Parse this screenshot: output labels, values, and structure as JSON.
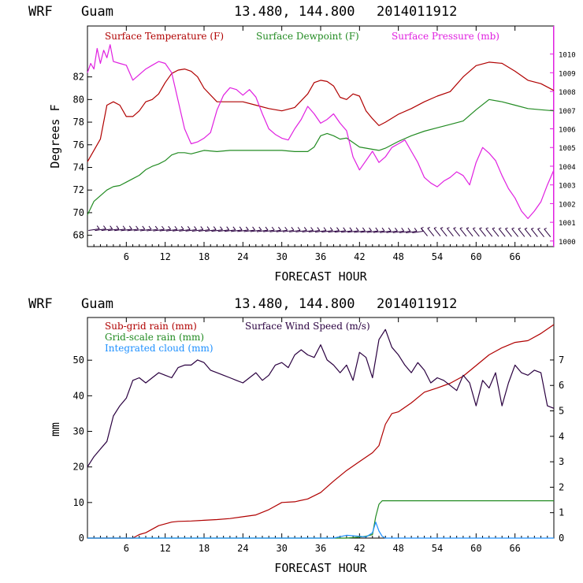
{
  "header": {
    "model": "WRF",
    "location": "Guam",
    "coords": "13.480, 144.800",
    "init": "2014011912"
  },
  "colors": {
    "temperature": "#b00000",
    "dewpoint": "#228b22",
    "pressure": "#e020e0",
    "subgrid_rain": "#b00000",
    "grid_rain": "#228b22",
    "cloud": "#1e90ff",
    "wind": "#2a0040"
  },
  "chart_data": [
    {
      "type": "line",
      "xlabel": "FORECAST HOUR",
      "ylabel": "Degrees F",
      "xlim": [
        0,
        72
      ],
      "ylim": [
        67,
        86.5
      ],
      "xticks": [
        "6",
        "12",
        "18",
        "24",
        "30",
        "36",
        "42",
        "48",
        "54",
        "60",
        "66"
      ],
      "yticks_left": [
        "68",
        "70",
        "72",
        "74",
        "76",
        "78",
        "80",
        "82"
      ],
      "yticks_right": [
        "1000",
        "1001",
        "1002",
        "1003",
        "1004",
        "1005",
        "1006",
        "1007",
        "1008",
        "1009",
        "1010"
      ],
      "y2lim": [
        999.7,
        1011.5
      ],
      "series": [
        {
          "name": "Surface Temperature (F)",
          "axis": "left",
          "x": [
            0,
            1,
            2,
            3,
            4,
            5,
            6,
            7,
            8,
            9,
            10,
            11,
            12,
            13,
            14,
            15,
            16,
            17,
            18,
            20,
            22,
            24,
            26,
            28,
            30,
            32,
            34,
            35,
            36,
            37,
            38,
            39,
            40,
            41,
            42,
            43,
            44,
            45,
            46,
            48,
            50,
            52,
            54,
            56,
            58,
            60,
            62,
            64,
            66,
            68,
            70,
            72
          ],
          "y": [
            74.5,
            75.5,
            76.5,
            79.5,
            79.8,
            79.5,
            78.5,
            78.5,
            79,
            79.8,
            80,
            80.5,
            81.5,
            82.3,
            82.6,
            82.7,
            82.5,
            82,
            81,
            79.8,
            79.8,
            79.8,
            79.5,
            79.2,
            79,
            79.3,
            80.5,
            81.5,
            81.7,
            81.6,
            81.2,
            80.2,
            80,
            80.5,
            80.3,
            79,
            78.3,
            77.7,
            78,
            78.7,
            79.2,
            79.8,
            80.3,
            80.7,
            82,
            83,
            83.3,
            83.2,
            82.5,
            81.7,
            81.4,
            80.8
          ]
        },
        {
          "name": "Surface Dewpoint (F)",
          "axis": "left",
          "x": [
            0,
            1,
            2,
            3,
            4,
            5,
            6,
            7,
            8,
            9,
            10,
            11,
            12,
            13,
            14,
            15,
            16,
            18,
            20,
            22,
            24,
            26,
            28,
            30,
            32,
            34,
            35,
            36,
            37,
            38,
            39,
            40,
            41,
            42,
            44,
            45,
            46,
            48,
            50,
            52,
            54,
            56,
            58,
            60,
            62,
            64,
            66,
            68,
            70,
            72
          ],
          "y": [
            69.8,
            71,
            71.5,
            72,
            72.3,
            72.4,
            72.7,
            73,
            73.3,
            73.8,
            74.1,
            74.3,
            74.6,
            75.1,
            75.3,
            75.3,
            75.2,
            75.5,
            75.4,
            75.5,
            75.5,
            75.5,
            75.5,
            75.5,
            75.4,
            75.4,
            75.8,
            76.8,
            77,
            76.8,
            76.5,
            76.6,
            76.2,
            75.8,
            75.6,
            75.5,
            75.7,
            76.3,
            76.8,
            77.2,
            77.5,
            77.8,
            78.1,
            79.1,
            80,
            79.8,
            79.5,
            79.2,
            79.1,
            79
          ],
          "steps": [
            [
              12,
              74.5,
              75.6
            ]
          ]
        },
        {
          "name": "Surface Pressure (mb)",
          "axis": "right",
          "x": [
            0,
            0.5,
            1,
            1.5,
            2,
            2.5,
            3,
            3.5,
            4,
            5,
            6,
            7,
            8,
            9,
            10,
            11,
            12,
            13,
            14,
            15,
            16,
            17,
            18,
            19,
            20,
            21,
            22,
            23,
            24,
            25,
            26,
            27,
            28,
            29,
            30,
            31,
            32,
            33,
            34,
            35,
            36,
            37,
            38,
            39,
            40,
            41,
            42,
            43,
            44,
            45,
            46,
            47,
            48,
            49,
            50,
            51,
            52,
            53,
            54,
            55,
            56,
            57,
            58,
            59,
            60,
            61,
            62,
            63,
            64,
            65,
            66,
            67,
            68,
            69,
            70,
            71,
            72
          ],
          "y": [
            1009,
            1009.5,
            1009.2,
            1010.3,
            1009.5,
            1010.2,
            1009.8,
            1010.5,
            1009.6,
            1009.5,
            1009.4,
            1008.6,
            1008.9,
            1009.2,
            1009.4,
            1009.6,
            1009.5,
            1009,
            1007.5,
            1006,
            1005.2,
            1005.3,
            1005.5,
            1005.8,
            1007,
            1007.8,
            1008.2,
            1008.1,
            1007.8,
            1008.1,
            1007.7,
            1006.8,
            1006,
            1005.7,
            1005.5,
            1005.4,
            1006,
            1006.5,
            1007.2,
            1006.8,
            1006.3,
            1006.5,
            1006.8,
            1006.3,
            1005.9,
            1004.5,
            1003.8,
            1004.3,
            1004.8,
            1004.2,
            1004.5,
            1005,
            1005.2,
            1005.4,
            1004.8,
            1004.2,
            1003.4,
            1003.1,
            1002.9,
            1003.2,
            1003.4,
            1003.7,
            1003.5,
            1003,
            1004.2,
            1005,
            1004.7,
            1004.3,
            1003.5,
            1002.8,
            1002.3,
            1001.6,
            1001.2,
            1001.6,
            1002.1,
            1003,
            1003.8
          ]
        },
        {
          "name": "Wind barbs",
          "axis": "left",
          "type": "barbs",
          "y": [
            68.5,
            68.2
          ]
        }
      ]
    },
    {
      "type": "line",
      "xlabel": "FORECAST HOUR",
      "ylabel": "mm",
      "xlim": [
        0,
        72
      ],
      "ylim": [
        0,
        62
      ],
      "xticks": [
        "6",
        "12",
        "18",
        "24",
        "30",
        "36",
        "42",
        "48",
        "54",
        "60",
        "66"
      ],
      "yticks_left": [
        "0",
        "10",
        "20",
        "30",
        "40",
        "50"
      ],
      "yticks_right": [
        "0",
        "1",
        "2",
        "3",
        "4",
        "5",
        "6",
        "7"
      ],
      "y2lim": [
        0,
        8.67
      ],
      "series": [
        {
          "name": "Sub-grid rain (mm)",
          "axis": "left",
          "x": [
            0,
            6,
            7,
            8,
            9,
            10,
            11,
            12,
            13,
            14,
            16,
            18,
            20,
            22,
            24,
            26,
            28,
            30,
            32,
            34,
            36,
            38,
            40,
            42,
            44,
            45,
            46,
            47,
            48,
            50,
            52,
            54,
            56,
            58,
            60,
            62,
            64,
            66,
            68,
            70,
            72
          ],
          "y": [
            0,
            0,
            0,
            1,
            1.5,
            2.5,
            3.5,
            4,
            4.5,
            4.7,
            4.8,
            5,
            5.2,
            5.5,
            6,
            6.5,
            8,
            10,
            10.2,
            11,
            12.8,
            16,
            19,
            21.5,
            24,
            26,
            32,
            35,
            35.5,
            38,
            41,
            42.2,
            43.5,
            45.5,
            48.5,
            51.5,
            53.5,
            55,
            55.5,
            57.5,
            60
          ]
        },
        {
          "name": "Grid-scale rain (mm)",
          "axis": "left",
          "x": [
            0,
            40,
            42,
            43,
            44,
            44.5,
            45,
            45.5,
            72
          ],
          "y": [
            0,
            0,
            0.3,
            0.5,
            1,
            6,
            9.5,
            10.5,
            10.5
          ]
        },
        {
          "name": "Integrated cloud (mm)",
          "axis": "left",
          "x": [
            0,
            38,
            40,
            42,
            43,
            44,
            44.5,
            45,
            45.5,
            46,
            72
          ],
          "y": [
            0,
            0,
            0.8,
            0.5,
            0.3,
            1.5,
            4.5,
            2,
            0.5,
            0,
            0
          ]
        },
        {
          "name": "Surface Wind Speed (m/s)",
          "axis": "right",
          "x": [
            0,
            1,
            2,
            3,
            4,
            5,
            6,
            7,
            8,
            9,
            10,
            11,
            12,
            13,
            14,
            15,
            16,
            17,
            18,
            19,
            20,
            21,
            22,
            23,
            24,
            25,
            26,
            27,
            28,
            29,
            30,
            31,
            32,
            33,
            34,
            35,
            36,
            37,
            38,
            39,
            40,
            41,
            42,
            43,
            44,
            45,
            46,
            47,
            48,
            49,
            50,
            51,
            52,
            53,
            54,
            55,
            56,
            57,
            58,
            59,
            60,
            61,
            62,
            63,
            64,
            65,
            66,
            67,
            68,
            69,
            70,
            71,
            72
          ],
          "y": [
            2.8,
            3.2,
            3.5,
            3.8,
            4.8,
            5.2,
            5.5,
            6.2,
            6.3,
            6.1,
            6.3,
            6.5,
            6.4,
            6.3,
            6.7,
            6.8,
            6.8,
            7,
            6.9,
            6.6,
            6.5,
            6.4,
            6.3,
            6.2,
            6.1,
            6.3,
            6.5,
            6.2,
            6.4,
            6.8,
            6.9,
            6.7,
            7.2,
            7.4,
            7.2,
            7.1,
            7.6,
            7.0,
            6.8,
            6.5,
            6.8,
            6.2,
            7.3,
            7.1,
            6.3,
            7.8,
            8.2,
            7.5,
            7.2,
            6.8,
            6.5,
            6.9,
            6.6,
            6.1,
            6.3,
            6.2,
            6.0,
            5.8,
            6.4,
            6.1,
            5.2,
            6.2,
            5.9,
            6.5,
            5.2,
            6.1,
            6.8,
            6.5,
            6.4,
            6.6,
            6.5,
            5.2,
            5.1
          ]
        }
      ]
    }
  ]
}
